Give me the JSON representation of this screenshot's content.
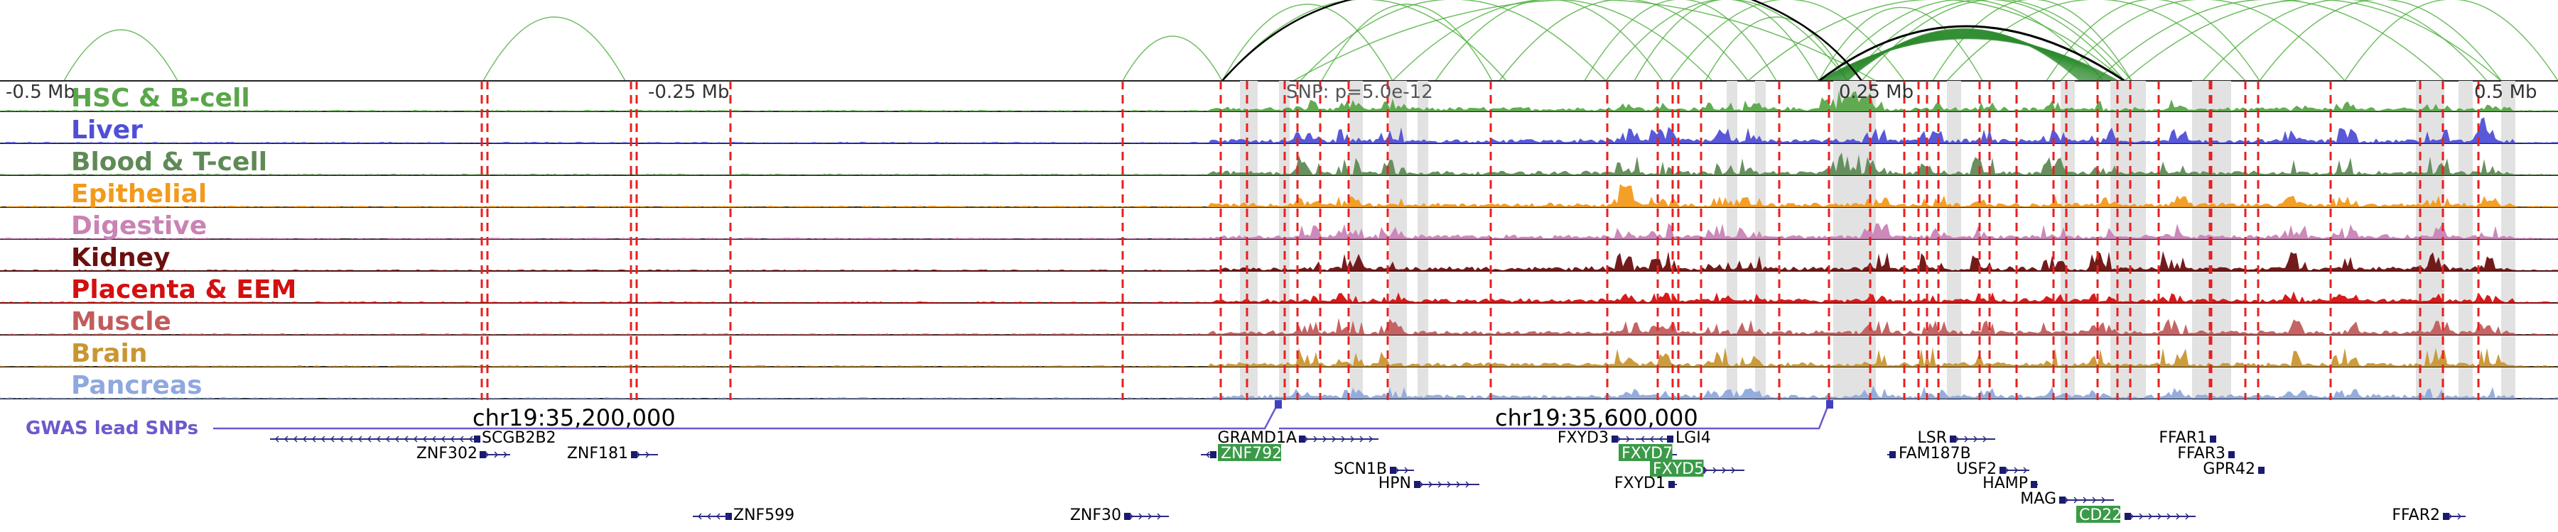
{
  "chart_data": {
    "type": "genome-browser-tracks",
    "region": {
      "chrom": "chr19",
      "start": 34900000,
      "end": 35900000
    },
    "snp_label": "SNP: p=5.0e-12",
    "mb_labels": [
      "-0.5 Mb",
      "-0.25 Mb",
      "0.25 Mb",
      "0.5 Mb"
    ],
    "coord_labels": [
      "chr19:35,200,000",
      "chr19:35,600,000"
    ],
    "gwas_label": "GWAS lead SNPs",
    "tracks": [
      {
        "name": "HSC & B-cell",
        "color": "#5aa64a"
      },
      {
        "name": "Liver",
        "color": "#4f4fd6"
      },
      {
        "name": "Blood & T-cell",
        "color": "#5f8a56"
      },
      {
        "name": "Epithelial",
        "color": "#f39a1b"
      },
      {
        "name": "Digestive",
        "color": "#c983b5"
      },
      {
        "name": "Kidney",
        "color": "#6b0f0f"
      },
      {
        "name": "Placenta & EEM",
        "color": "#d40f0f"
      },
      {
        "name": "Muscle",
        "color": "#c25c5c"
      },
      {
        "name": "Brain",
        "color": "#c99632"
      },
      {
        "name": "Pancreas",
        "color": "#8fa8dd"
      }
    ],
    "genes": [
      {
        "name": "SCGB2B2"
      },
      {
        "name": "ZNF302"
      },
      {
        "name": "ZNF181"
      },
      {
        "name": "ZNF599"
      },
      {
        "name": "GRAMD1A"
      },
      {
        "name": "ZNF792",
        "highlight": true
      },
      {
        "name": "SCN1B"
      },
      {
        "name": "HPN"
      },
      {
        "name": "ZNF30"
      },
      {
        "name": "FXYD3"
      },
      {
        "name": "LGI4"
      },
      {
        "name": "FXYD7",
        "highlight": true
      },
      {
        "name": "FXYD5",
        "highlight": true
      },
      {
        "name": "FXYD1"
      },
      {
        "name": "LSR"
      },
      {
        "name": "FAM187B"
      },
      {
        "name": "USF2"
      },
      {
        "name": "HAMP"
      },
      {
        "name": "MAG"
      },
      {
        "name": "CD22",
        "highlight": true
      },
      {
        "name": "FFAR1"
      },
      {
        "name": "FFAR3"
      },
      {
        "name": "GPR42"
      },
      {
        "name": "FFAR2"
      }
    ]
  }
}
